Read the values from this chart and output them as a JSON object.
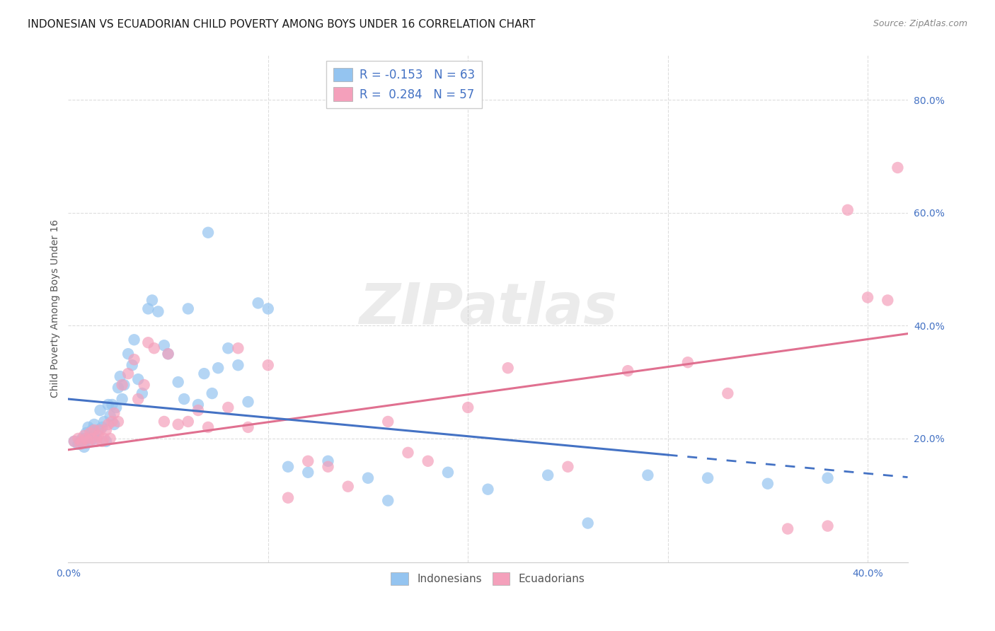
{
  "title": "INDONESIAN VS ECUADORIAN CHILD POVERTY AMONG BOYS UNDER 16 CORRELATION CHART",
  "source": "Source: ZipAtlas.com",
  "ylabel": "Child Poverty Among Boys Under 16",
  "xlim": [
    0.0,
    0.42
  ],
  "ylim": [
    -0.02,
    0.88
  ],
  "plot_xlim": [
    0.0,
    0.42
  ],
  "ytick_vals": [
    0.2,
    0.4,
    0.6,
    0.8
  ],
  "ytick_labels": [
    "20.0%",
    "40.0%",
    "60.0%",
    "80.0%"
  ],
  "xtick_vals": [
    0.0,
    0.1,
    0.2,
    0.3,
    0.4
  ],
  "xtick_labels": [
    "0.0%",
    "",
    "",
    "",
    "40.0%"
  ],
  "indonesian_dot_color": "#94C4F0",
  "ecuadorian_dot_color": "#F4A0BB",
  "indonesian_line_color": "#4472C4",
  "ecuadorian_line_color": "#E07090",
  "legend_text_color": "#4472C4",
  "R_indonesian": -0.153,
  "N_indonesian": 63,
  "R_ecuadorian": 0.284,
  "N_ecuadorian": 57,
  "indo_intercept": 0.27,
  "indo_slope": -0.33,
  "ecua_intercept": 0.18,
  "ecua_slope": 0.49,
  "background_color": "#FFFFFF",
  "grid_color": "#DDDDDD",
  "tick_color": "#4472C4",
  "watermark": "ZIPatlas",
  "indonesian_x": [
    0.003,
    0.005,
    0.006,
    0.007,
    0.008,
    0.009,
    0.01,
    0.01,
    0.011,
    0.012,
    0.013,
    0.013,
    0.014,
    0.015,
    0.016,
    0.017,
    0.018,
    0.019,
    0.02,
    0.021,
    0.022,
    0.023,
    0.024,
    0.025,
    0.026,
    0.027,
    0.028,
    0.03,
    0.032,
    0.033,
    0.035,
    0.037,
    0.04,
    0.042,
    0.045,
    0.048,
    0.05,
    0.055,
    0.058,
    0.06,
    0.065,
    0.068,
    0.07,
    0.072,
    0.075,
    0.08,
    0.085,
    0.09,
    0.095,
    0.1,
    0.11,
    0.12,
    0.13,
    0.15,
    0.16,
    0.19,
    0.21,
    0.24,
    0.26,
    0.29,
    0.32,
    0.35,
    0.38
  ],
  "indonesian_y": [
    0.195,
    0.19,
    0.195,
    0.2,
    0.185,
    0.21,
    0.22,
    0.2,
    0.195,
    0.215,
    0.205,
    0.225,
    0.2,
    0.215,
    0.25,
    0.22,
    0.23,
    0.195,
    0.26,
    0.24,
    0.26,
    0.225,
    0.255,
    0.29,
    0.31,
    0.27,
    0.295,
    0.35,
    0.33,
    0.375,
    0.305,
    0.28,
    0.43,
    0.445,
    0.425,
    0.365,
    0.35,
    0.3,
    0.27,
    0.43,
    0.26,
    0.315,
    0.565,
    0.28,
    0.325,
    0.36,
    0.33,
    0.265,
    0.44,
    0.43,
    0.15,
    0.14,
    0.16,
    0.13,
    0.09,
    0.14,
    0.11,
    0.135,
    0.05,
    0.135,
    0.13,
    0.12,
    0.13
  ],
  "ecuadorian_x": [
    0.003,
    0.005,
    0.006,
    0.007,
    0.008,
    0.009,
    0.01,
    0.011,
    0.012,
    0.013,
    0.014,
    0.015,
    0.016,
    0.017,
    0.018,
    0.019,
    0.02,
    0.021,
    0.022,
    0.023,
    0.025,
    0.027,
    0.03,
    0.033,
    0.035,
    0.038,
    0.04,
    0.043,
    0.048,
    0.05,
    0.055,
    0.06,
    0.065,
    0.07,
    0.08,
    0.085,
    0.09,
    0.1,
    0.11,
    0.12,
    0.13,
    0.14,
    0.16,
    0.17,
    0.18,
    0.2,
    0.22,
    0.25,
    0.28,
    0.31,
    0.33,
    0.36,
    0.38,
    0.39,
    0.4,
    0.41,
    0.415
  ],
  "ecuadorian_y": [
    0.195,
    0.2,
    0.19,
    0.195,
    0.205,
    0.2,
    0.195,
    0.21,
    0.2,
    0.215,
    0.195,
    0.205,
    0.215,
    0.195,
    0.2,
    0.215,
    0.225,
    0.2,
    0.23,
    0.245,
    0.23,
    0.295,
    0.315,
    0.34,
    0.27,
    0.295,
    0.37,
    0.36,
    0.23,
    0.35,
    0.225,
    0.23,
    0.25,
    0.22,
    0.255,
    0.36,
    0.22,
    0.33,
    0.095,
    0.16,
    0.15,
    0.115,
    0.23,
    0.175,
    0.16,
    0.255,
    0.325,
    0.15,
    0.32,
    0.335,
    0.28,
    0.04,
    0.045,
    0.605,
    0.45,
    0.445,
    0.68
  ]
}
